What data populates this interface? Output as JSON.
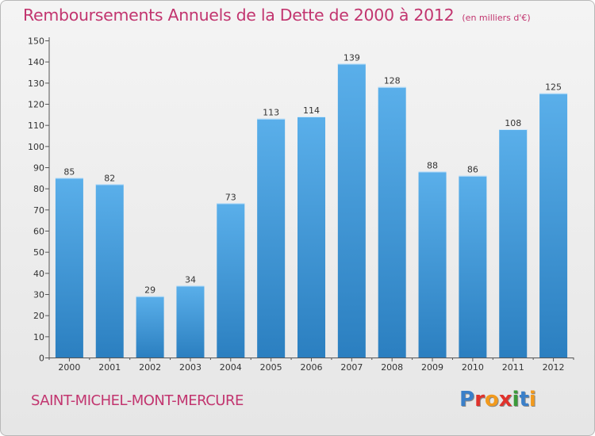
{
  "title": "Remboursements Annuels de la Dette de 2000 à 2012",
  "unit": "(en milliers d'€)",
  "commune": "SAINT-MICHEL-MONT-MERCURE",
  "logo": {
    "text": "Proxiti",
    "colors": [
      "#3a7fc9",
      "#e0322c",
      "#f29a1d",
      "#e0322c",
      "#3a9a3a",
      "#3a7fc9",
      "#f29a1d"
    ]
  },
  "colors": {
    "title": "#c2356f",
    "bar_top": "#5aafea",
    "bar_bottom": "#2b7fc0",
    "axis": "#555555"
  },
  "chart_data": {
    "type": "bar",
    "categories": [
      "2000",
      "2001",
      "2002",
      "2003",
      "2004",
      "2005",
      "2006",
      "2007",
      "2008",
      "2009",
      "2010",
      "2011",
      "2012"
    ],
    "values": [
      85,
      82,
      29,
      34,
      73,
      113,
      114,
      139,
      128,
      88,
      86,
      108,
      125
    ],
    "ylim": [
      0,
      150
    ],
    "yticks": [
      0,
      10,
      20,
      30,
      40,
      50,
      60,
      70,
      80,
      90,
      100,
      110,
      120,
      130,
      140,
      150
    ],
    "grid": false,
    "data_labels": true
  }
}
